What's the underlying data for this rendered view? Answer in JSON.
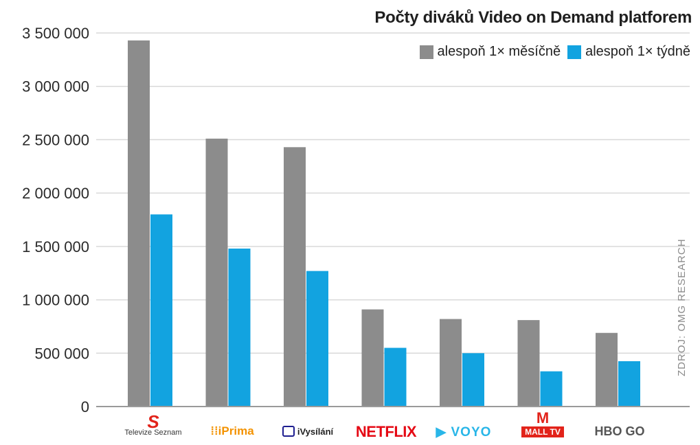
{
  "title": "Počty diváků Video on Demand platforem",
  "source": "ZDROJ: OMG RESEARCH",
  "colors": {
    "monthly": "#8c8c8c",
    "weekly": "#12a3e0",
    "grid": "#d9d9d9",
    "axis": "#9a9a9a"
  },
  "chart_data": {
    "type": "bar",
    "categories": [
      "Televize Seznam",
      "iPrima",
      "iVysílání",
      "NETFLIX",
      "VOYO",
      "MALL TV",
      "HBO GO"
    ],
    "series": [
      {
        "name": "alespoň 1× měsíčně",
        "values": [
          3430000,
          2510000,
          2430000,
          910000,
          820000,
          810000,
          690000
        ]
      },
      {
        "name": "alespoň 1× týdně",
        "values": [
          1800000,
          1480000,
          1270000,
          550000,
          500000,
          330000,
          425000
        ]
      }
    ],
    "ylim": [
      0,
      3500000
    ],
    "yticks": [
      0,
      500000,
      1000000,
      1500000,
      2000000,
      2500000,
      3000000,
      3500000
    ],
    "ytick_labels": [
      "0",
      "500 000",
      "1 000 000",
      "1 500 000",
      "2 000 000",
      "2 500 000",
      "3 000 000",
      "3 500 000"
    ],
    "grid": true,
    "legend_position": "top-right"
  }
}
